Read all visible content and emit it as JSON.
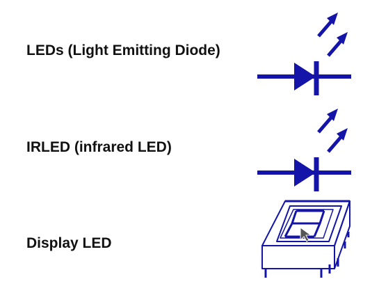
{
  "rows": [
    {
      "label": "LEDs (Light Emitting Diode)",
      "icon": "led-symbol-icon"
    },
    {
      "label": "IRLED (infrared LED)",
      "icon": "irled-symbol-icon"
    },
    {
      "label": "Display LED",
      "icon": "seven-segment-display-icon"
    }
  ],
  "colors": {
    "symbol": "#1414a8",
    "text": "#111111",
    "background": "#ffffff"
  }
}
